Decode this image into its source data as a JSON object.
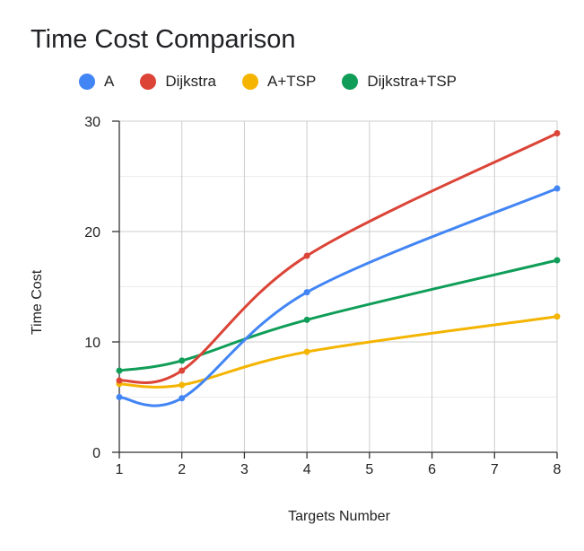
{
  "chart_data": {
    "type": "line",
    "title": "Time Cost Comparison",
    "xlabel": "Targets Number",
    "ylabel": "Time Cost",
    "x": [
      1,
      2,
      4,
      8
    ],
    "xticks": [
      1,
      2,
      3,
      4,
      5,
      6,
      7,
      8
    ],
    "xlim": [
      1,
      8
    ],
    "ylim": [
      0,
      30
    ],
    "yticks": [
      0,
      10,
      20,
      30
    ],
    "grid": true,
    "legend_position": "top",
    "series": [
      {
        "name": "A",
        "color": "#4285F4",
        "values": [
          5.0,
          4.9,
          14.5,
          23.9
        ]
      },
      {
        "name": "Dijkstra",
        "color": "#DB4437",
        "values": [
          6.5,
          7.4,
          17.8,
          28.9
        ]
      },
      {
        "name": "A+TSP",
        "color": "#F4B400",
        "values": [
          6.2,
          6.1,
          9.1,
          12.3
        ]
      },
      {
        "name": "Dijkstra+TSP",
        "color": "#0F9D58",
        "values": [
          7.4,
          8.3,
          12.0,
          17.4
        ]
      }
    ]
  }
}
